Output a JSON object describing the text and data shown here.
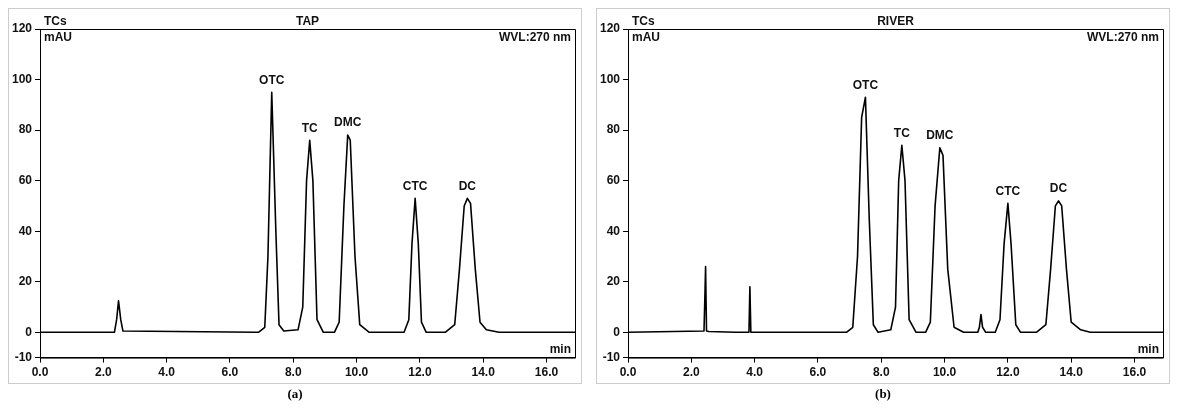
{
  "chart_data": [
    {
      "type": "line",
      "title": "TAP",
      "xlabel": "min",
      "ylabel": "mAU",
      "color": "#000000",
      "grid": false,
      "marker": "none",
      "line_style": "solid",
      "x": [
        0,
        2.35,
        2.42,
        2.48,
        2.55,
        2.62,
        6.9,
        7.1,
        7.2,
        7.32,
        7.45,
        7.55,
        7.7,
        8.15,
        8.3,
        8.42,
        8.52,
        8.62,
        8.75,
        8.95,
        9.3,
        9.45,
        9.6,
        9.72,
        9.8,
        9.95,
        10.1,
        10.4,
        11.5,
        11.65,
        11.75,
        11.85,
        11.95,
        12.05,
        12.2,
        12.8,
        13.1,
        13.25,
        13.4,
        13.5,
        13.6,
        13.75,
        13.9,
        14.1,
        14.5,
        16.9
      ],
      "values": [
        0,
        0,
        5,
        12.5,
        5,
        0.5,
        0,
        2,
        30,
        95,
        40,
        3,
        0.5,
        1,
        10,
        60,
        76,
        60,
        5,
        0,
        0,
        4,
        50,
        78,
        76,
        30,
        3,
        0,
        0,
        5,
        35,
        53,
        35,
        4,
        0,
        0,
        3,
        25,
        50,
        53,
        51,
        25,
        4,
        1,
        0,
        0
      ],
      "xlim": [
        0,
        16.9
      ],
      "xticks": [
        {
          "value": 0,
          "label": "0.0"
        },
        {
          "value": 2,
          "label": "2.0"
        },
        {
          "value": 4,
          "label": "4.0"
        },
        {
          "value": 6,
          "label": "6.0"
        },
        {
          "value": 8,
          "label": "8.0"
        },
        {
          "value": 10,
          "label": "10.0"
        },
        {
          "value": 12,
          "label": "12.0"
        },
        {
          "value": 14,
          "label": "14.0"
        },
        {
          "value": 16,
          "label": "16.0"
        }
      ],
      "ylim": [
        -10,
        120
      ],
      "yticks": [
        -10,
        0,
        20,
        40,
        60,
        80,
        100,
        120
      ],
      "annotations": [
        "TCs",
        "WVL:270 nm",
        "(a)",
        {
          "text": "OTC",
          "x": 7.32,
          "y": 95
        },
        {
          "text": "TC",
          "x": 8.52,
          "y": 76
        },
        {
          "text": "DMC",
          "x": 9.72,
          "y": 78
        },
        {
          "text": "CTC",
          "x": 11.85,
          "y": 53
        },
        {
          "text": "DC",
          "x": 13.5,
          "y": 53
        }
      ]
    },
    {
      "type": "line",
      "title": "RIVER",
      "xlabel": "min",
      "ylabel": "mAU",
      "color": "#000000",
      "grid": false,
      "marker": "none",
      "line_style": "solid",
      "x": [
        0,
        2.4,
        2.43,
        2.45,
        2.48,
        2.55,
        3.4,
        3.82,
        3.85,
        3.88,
        3.92,
        6.9,
        7.1,
        7.25,
        7.38,
        7.5,
        7.62,
        7.75,
        7.9,
        8.3,
        8.45,
        8.55,
        8.65,
        8.75,
        8.88,
        9.1,
        9.4,
        9.55,
        9.7,
        9.85,
        9.95,
        10.1,
        10.3,
        10.6,
        11.05,
        11.1,
        11.15,
        11.2,
        11.3,
        11.6,
        11.75,
        11.88,
        12.0,
        12.1,
        12.25,
        12.4,
        12.9,
        13.2,
        13.35,
        13.5,
        13.6,
        13.7,
        13.85,
        14.0,
        14.3,
        14.6,
        16.9
      ],
      "values": [
        0,
        0.5,
        15,
        26,
        0.5,
        0.3,
        0,
        0,
        18,
        0,
        0,
        0,
        2,
        30,
        85,
        93,
        45,
        3,
        0,
        1,
        10,
        60,
        74,
        60,
        5,
        0,
        0,
        4,
        50,
        73,
        70,
        25,
        2,
        0,
        0,
        2,
        7,
        2,
        0,
        0,
        5,
        35,
        51,
        35,
        3,
        0,
        0,
        3,
        25,
        50,
        52,
        50,
        25,
        4,
        1,
        0,
        0
      ],
      "xlim": [
        0,
        16.9
      ],
      "xticks": [
        {
          "value": 0,
          "label": "0.0"
        },
        {
          "value": 2,
          "label": "2.0"
        },
        {
          "value": 4,
          "label": "4.0"
        },
        {
          "value": 6,
          "label": "6.0"
        },
        {
          "value": 8,
          "label": "8.0"
        },
        {
          "value": 10,
          "label": "10.0"
        },
        {
          "value": 12,
          "label": "12.0"
        },
        {
          "value": 14,
          "label": "14.0"
        },
        {
          "value": 16,
          "label": "16.0"
        }
      ],
      "ylim": [
        -10,
        120
      ],
      "yticks": [
        -10,
        0,
        20,
        40,
        60,
        80,
        100,
        120
      ],
      "annotations": [
        "TCs",
        "WVL:270 nm",
        "(b)",
        {
          "text": "OTC",
          "x": 7.5,
          "y": 93
        },
        {
          "text": "TC",
          "x": 8.65,
          "y": 74
        },
        {
          "text": "DMC",
          "x": 9.85,
          "y": 73
        },
        {
          "text": "CTC",
          "x": 12.0,
          "y": 51
        },
        {
          "text": "DC",
          "x": 13.6,
          "y": 52
        }
      ]
    }
  ]
}
